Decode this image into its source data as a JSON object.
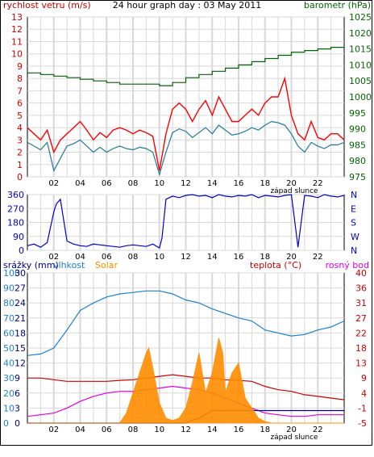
{
  "title": "24 hour graph day : 03 May 2011",
  "colors": {
    "wind_avg": "#1f7a9a",
    "wind_gust": "#ff0000",
    "pressure": "#006400",
    "wind_dir": "#0000cc",
    "humidity": "#1e7fd0",
    "solar": "#ff8c00",
    "temperature": "#cc0000",
    "dewpoint": "#e000e0",
    "rain": "#000080",
    "grid": "#d8d8d8"
  },
  "hour_labels": [
    "02",
    "04",
    "06",
    "08",
    "10",
    "12",
    "14",
    "16",
    "18",
    "20",
    "22"
  ],
  "sunset_label": "západ slunce",
  "chart_data": [
    {
      "type": "line",
      "name": "wind_pressure",
      "labels": {
        "left": "rychlost vetru (m/s)",
        "right": "barometr (hPa)"
      },
      "x_range": [
        0,
        24
      ],
      "y_left_range": [
        0,
        13
      ],
      "y_right_range": [
        975,
        1025
      ],
      "y_left_ticks": [
        0,
        1,
        2,
        3,
        4,
        5,
        6,
        7,
        8,
        9,
        10,
        11,
        12,
        13
      ],
      "y_right_ticks": [
        975,
        980,
        985,
        990,
        995,
        1000,
        1005,
        1010,
        1015,
        1020,
        1025
      ],
      "series": [
        {
          "key": "gust",
          "axis": "left",
          "x": [
            0,
            0.5,
            1,
            1.5,
            2,
            2.5,
            3,
            3.5,
            4,
            4.5,
            5,
            5.5,
            6,
            6.5,
            7,
            7.5,
            8,
            8.5,
            9,
            9.5,
            10,
            10.5,
            11,
            11.5,
            12,
            12.5,
            13,
            13.5,
            14,
            14.5,
            15,
            15.5,
            16,
            16.5,
            17,
            17.5,
            18,
            18.5,
            19,
            19.5,
            20,
            20.5,
            21,
            21.5,
            22,
            22.5,
            23,
            23.5,
            24
          ],
          "y": [
            4,
            3.5,
            3,
            3.8,
            2,
            3,
            3.5,
            4,
            4.5,
            3.8,
            3,
            3.6,
            3.2,
            3.8,
            4,
            3.8,
            3.5,
            3.8,
            3.6,
            3.3,
            0.5,
            3.5,
            5.5,
            6,
            5.5,
            4.5,
            5.5,
            6.2,
            5,
            6.5,
            5.5,
            4.5,
            4.5,
            5,
            5.5,
            5,
            6,
            6.5,
            6.5,
            8,
            5,
            3.5,
            3,
            4.5,
            3.2,
            3,
            3.5,
            3.5,
            3
          ]
        },
        {
          "key": "average",
          "axis": "left",
          "x": [
            0,
            0.5,
            1,
            1.5,
            2,
            2.5,
            3,
            3.5,
            4,
            4.5,
            5,
            5.5,
            6,
            6.5,
            7,
            7.5,
            8,
            8.5,
            9,
            9.5,
            10,
            10.5,
            11,
            11.5,
            12,
            12.5,
            13,
            13.5,
            14,
            14.5,
            15,
            15.5,
            16,
            16.5,
            17,
            17.5,
            18,
            18.5,
            19,
            19.5,
            20,
            20.5,
            21,
            21.5,
            22,
            22.5,
            23,
            23.5,
            24
          ],
          "y": [
            2.8,
            2.5,
            2.2,
            2.8,
            0.5,
            1.5,
            2.5,
            2.7,
            3,
            2.5,
            2,
            2.4,
            2,
            2.3,
            2.5,
            2.3,
            2.2,
            2.4,
            2.3,
            2,
            0.2,
            2,
            3.6,
            3.9,
            3.7,
            3.2,
            3.6,
            4,
            3.5,
            4.2,
            3.8,
            3.4,
            3.5,
            3.7,
            4,
            3.8,
            4.2,
            4.5,
            4.4,
            4.2,
            3.5,
            2.5,
            2,
            2.8,
            2.5,
            2.3,
            2.6,
            2.6,
            2.8
          ]
        },
        {
          "key": "pressure",
          "axis": "right",
          "x": [
            0,
            1,
            2,
            3,
            4,
            5,
            6,
            7,
            8,
            9,
            10,
            11,
            12,
            13,
            14,
            15,
            16,
            17,
            18,
            19,
            20,
            21,
            22,
            23,
            24
          ],
          "y": [
            1007.5,
            1007,
            1006.5,
            1006,
            1005.5,
            1005,
            1004.5,
            1004,
            1004,
            1004,
            1003.5,
            1004.5,
            1006,
            1007,
            1008,
            1009,
            1010,
            1011,
            1012,
            1013,
            1014,
            1014.5,
            1015,
            1015.5,
            1015.5
          ]
        }
      ]
    },
    {
      "type": "scatter",
      "name": "wind_direction",
      "y_range": [
        0,
        360
      ],
      "y_ticks": [
        0,
        90,
        180,
        270,
        360
      ],
      "compass_labels": [
        "N",
        "W",
        "S",
        "E",
        "N"
      ],
      "x": [
        0,
        0.5,
        1,
        1.5,
        2,
        2.2,
        2.5,
        3,
        3.5,
        4,
        4.5,
        5,
        5.5,
        6,
        6.5,
        7,
        7.5,
        8,
        8.5,
        9,
        9.5,
        10,
        10.2,
        10.5,
        11,
        11.5,
        12,
        12.5,
        13,
        13.5,
        14,
        14.5,
        15,
        15.5,
        16,
        16.5,
        17,
        17.5,
        18,
        18.5,
        19,
        19.5,
        20,
        20.5,
        21,
        21.5,
        22,
        22.5,
        23,
        23.5,
        24
      ],
      "y": [
        30,
        40,
        20,
        50,
        250,
        300,
        330,
        60,
        40,
        30,
        25,
        40,
        35,
        30,
        25,
        20,
        30,
        35,
        30,
        25,
        40,
        15,
        80,
        330,
        350,
        340,
        355,
        360,
        350,
        355,
        340,
        360,
        350,
        345,
        355,
        350,
        360,
        340,
        355,
        350,
        345,
        355,
        360,
        20,
        355,
        350,
        340,
        360,
        350,
        345,
        355
      ]
    },
    {
      "type": "line",
      "name": "rain_humidity_solar_temperature",
      "labels": {
        "rain": "srážky (mm)",
        "humidity": "vlhkost",
        "solar": "Solar",
        "temperature": "teplota (°C)",
        "dewpoint": "rosný bod"
      },
      "y_left_rain_ticks": [
        0,
        3,
        6,
        9,
        12,
        15,
        18,
        21,
        24,
        27,
        30
      ],
      "y_left_humidity_ticks": [
        0,
        10,
        20,
        30,
        40,
        50,
        60,
        70,
        80,
        90,
        100
      ],
      "y_right_ticks": [
        -5,
        -1,
        4,
        9,
        13,
        18,
        22,
        27,
        31,
        36,
        40
      ],
      "y_right_range": [
        -5,
        40
      ],
      "series": [
        {
          "key": "humidity",
          "x": [
            0,
            1,
            2,
            3,
            4,
            5,
            6,
            7,
            8,
            9,
            10,
            11,
            12,
            13,
            14,
            15,
            16,
            17,
            18,
            19,
            20,
            21,
            22,
            23,
            24
          ],
          "y": [
            45,
            46,
            50,
            62,
            75,
            80,
            84,
            86,
            87,
            88,
            88,
            86,
            82,
            80,
            76,
            73,
            70,
            68,
            62,
            60,
            58,
            59,
            62,
            64,
            68
          ]
        },
        {
          "key": "temperature",
          "x": [
            0,
            1,
            2,
            3,
            4,
            5,
            6,
            7,
            8,
            9,
            10,
            11,
            12,
            13,
            14,
            15,
            16,
            17,
            18,
            19,
            20,
            21,
            22,
            23,
            24
          ],
          "y": [
            8.5,
            8.5,
            8,
            7.5,
            7.5,
            7.5,
            7.5,
            7.8,
            8,
            8.5,
            9,
            9.5,
            9,
            8.5,
            8.5,
            8,
            7.8,
            7.5,
            6,
            5,
            4.5,
            3.5,
            3,
            2.5,
            2
          ]
        },
        {
          "key": "dewpoint",
          "x": [
            0,
            1,
            2,
            3,
            4,
            5,
            6,
            7,
            8,
            9,
            10,
            11,
            12,
            13,
            14,
            15,
            16,
            17,
            18,
            19,
            20,
            21,
            22,
            23,
            24
          ],
          "y": [
            -3,
            -2.5,
            -2,
            -0.5,
            1.5,
            3,
            4,
            4.5,
            4.5,
            5,
            5.5,
            6,
            5.5,
            5,
            4,
            2.5,
            1,
            -0.5,
            -2,
            -2.5,
            -3,
            -3,
            -2.5,
            -2.5,
            -2.5
          ]
        },
        {
          "key": "rain",
          "x": [
            0,
            12,
            12.5,
            13,
            14,
            17,
            18,
            19,
            20,
            24
          ],
          "y": [
            0,
            0,
            0.6,
            1,
            2.5,
            2.5,
            2.5,
            2.5,
            2.5,
            2.5
          ]
        },
        {
          "key": "solar",
          "x": [
            0,
            7,
            7.5,
            8,
            8.5,
            9,
            9.2,
            9.5,
            10,
            10.5,
            11,
            11.5,
            12,
            12.5,
            13,
            13.5,
            14,
            14.5,
            14.8,
            15,
            15.5,
            16,
            16.5,
            17,
            17.5,
            18,
            18.5,
            24
          ],
          "y": [
            0,
            0,
            2,
            6,
            10,
            14,
            15,
            11,
            4,
            1,
            0.5,
            1,
            3,
            8,
            14,
            6,
            10,
            17,
            14,
            6,
            10,
            12,
            5,
            3,
            1,
            0.3,
            0,
            0
          ]
        }
      ]
    }
  ]
}
